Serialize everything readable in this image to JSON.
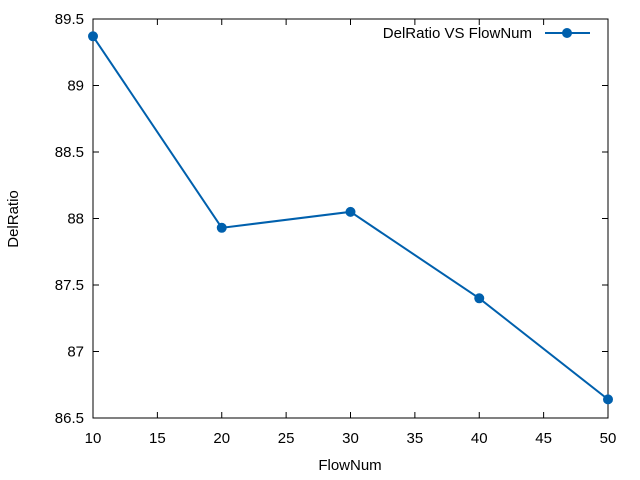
{
  "chart_data": {
    "type": "line",
    "title": "",
    "xlabel": "FlowNum",
    "ylabel": "DelRatio",
    "xlim": [
      10,
      50
    ],
    "ylim": [
      86.5,
      89.5
    ],
    "xticks": [
      "10",
      "15",
      "20",
      "25",
      "30",
      "35",
      "40",
      "45",
      "50"
    ],
    "yticks": [
      "86.5",
      "87",
      "87.5",
      "88",
      "88.5",
      "89",
      "89.5"
    ],
    "grid": false,
    "legend_position": "top-right",
    "series": [
      {
        "name": "DelRatio VS FlowNum",
        "color": "#0060ad",
        "marker": "circle",
        "x": [
          10,
          20,
          30,
          40,
          50
        ],
        "y": [
          89.37,
          87.93,
          88.05,
          87.4,
          86.64
        ]
      }
    ]
  }
}
